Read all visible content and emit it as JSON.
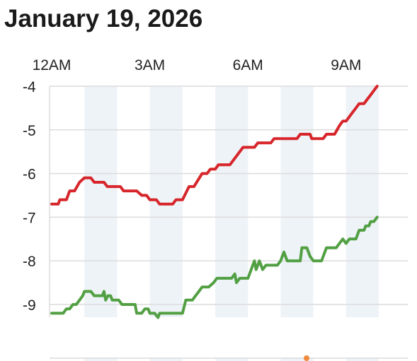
{
  "page": {
    "title": "January 19, 2026"
  },
  "chart_data": {
    "type": "line",
    "title": "",
    "xlabel": "",
    "ylabel": "",
    "x_unit": "hours after 12AM",
    "xlim": [
      0,
      11.0
    ],
    "ylim": [
      -9.25,
      -4
    ],
    "grid": true,
    "x_ticks": [
      {
        "x": 0,
        "label": "12AM"
      },
      {
        "x": 3,
        "label": "3AM"
      },
      {
        "x": 6,
        "label": "6AM"
      },
      {
        "x": 9,
        "label": "9AM"
      }
    ],
    "y_ticks": [
      -4,
      -5,
      -6,
      -7,
      -8,
      -9
    ],
    "series": [
      {
        "color": "#d7262b",
        "points": [
          [
            0.0,
            -6.7
          ],
          [
            0.2,
            -6.7
          ],
          [
            0.25,
            -6.6
          ],
          [
            0.45,
            -6.6
          ],
          [
            0.55,
            -6.4
          ],
          [
            0.7,
            -6.4
          ],
          [
            0.85,
            -6.2
          ],
          [
            1.0,
            -6.1
          ],
          [
            1.2,
            -6.1
          ],
          [
            1.3,
            -6.2
          ],
          [
            1.6,
            -6.2
          ],
          [
            1.7,
            -6.3
          ],
          [
            2.1,
            -6.3
          ],
          [
            2.2,
            -6.4
          ],
          [
            2.6,
            -6.4
          ],
          [
            2.75,
            -6.5
          ],
          [
            2.9,
            -6.5
          ],
          [
            3.0,
            -6.6
          ],
          [
            3.2,
            -6.6
          ],
          [
            3.3,
            -6.7
          ],
          [
            3.6,
            -6.7
          ],
          [
            3.7,
            -6.7
          ],
          [
            3.8,
            -6.6
          ],
          [
            4.0,
            -6.6
          ],
          [
            4.2,
            -6.3
          ],
          [
            4.35,
            -6.3
          ],
          [
            4.6,
            -6.0
          ],
          [
            4.75,
            -6.0
          ],
          [
            4.85,
            -5.9
          ],
          [
            5.0,
            -5.9
          ],
          [
            5.1,
            -5.8
          ],
          [
            5.45,
            -5.8
          ],
          [
            5.55,
            -5.7
          ],
          [
            5.65,
            -5.6
          ],
          [
            5.75,
            -5.5
          ],
          [
            5.85,
            -5.4
          ],
          [
            6.2,
            -5.4
          ],
          [
            6.3,
            -5.3
          ],
          [
            6.7,
            -5.3
          ],
          [
            6.8,
            -5.2
          ],
          [
            7.5,
            -5.2
          ],
          [
            7.6,
            -5.1
          ],
          [
            7.9,
            -5.1
          ],
          [
            7.95,
            -5.2
          ],
          [
            8.3,
            -5.2
          ],
          [
            8.4,
            -5.1
          ],
          [
            8.65,
            -5.1
          ],
          [
            8.8,
            -4.9
          ],
          [
            8.9,
            -4.8
          ],
          [
            9.0,
            -4.8
          ],
          [
            9.1,
            -4.7
          ],
          [
            9.2,
            -4.6
          ],
          [
            9.3,
            -4.5
          ],
          [
            9.4,
            -4.4
          ],
          [
            9.55,
            -4.4
          ],
          [
            9.65,
            -4.3
          ],
          [
            9.75,
            -4.2
          ],
          [
            9.85,
            -4.1
          ],
          [
            9.95,
            -4.0
          ]
        ]
      },
      {
        "color": "#52a043",
        "points": [
          [
            0.0,
            -9.2
          ],
          [
            0.35,
            -9.2
          ],
          [
            0.45,
            -9.1
          ],
          [
            0.55,
            -9.1
          ],
          [
            0.65,
            -9.0
          ],
          [
            0.75,
            -9.0
          ],
          [
            0.85,
            -8.9
          ],
          [
            0.95,
            -8.8
          ],
          [
            1.0,
            -8.7
          ],
          [
            1.2,
            -8.7
          ],
          [
            1.3,
            -8.8
          ],
          [
            1.55,
            -8.8
          ],
          [
            1.6,
            -8.7
          ],
          [
            1.65,
            -8.9
          ],
          [
            1.72,
            -8.8
          ],
          [
            1.8,
            -8.8
          ],
          [
            1.85,
            -8.9
          ],
          [
            2.05,
            -8.9
          ],
          [
            2.15,
            -9.0
          ],
          [
            2.55,
            -9.0
          ],
          [
            2.6,
            -9.2
          ],
          [
            2.75,
            -9.2
          ],
          [
            2.85,
            -9.1
          ],
          [
            2.95,
            -9.1
          ],
          [
            3.0,
            -9.2
          ],
          [
            3.15,
            -9.2
          ],
          [
            3.25,
            -9.3
          ],
          [
            3.3,
            -9.2
          ],
          [
            3.7,
            -9.2
          ],
          [
            4.0,
            -9.2
          ],
          [
            4.1,
            -8.9
          ],
          [
            4.3,
            -8.9
          ],
          [
            4.4,
            -8.8
          ],
          [
            4.5,
            -8.7
          ],
          [
            4.6,
            -8.6
          ],
          [
            4.8,
            -8.6
          ],
          [
            4.95,
            -8.5
          ],
          [
            5.05,
            -8.4
          ],
          [
            5.5,
            -8.4
          ],
          [
            5.6,
            -8.3
          ],
          [
            5.65,
            -8.5
          ],
          [
            5.75,
            -8.4
          ],
          [
            6.0,
            -8.4
          ],
          [
            6.1,
            -8.2
          ],
          [
            6.2,
            -8.0
          ],
          [
            6.25,
            -8.2
          ],
          [
            6.35,
            -8.0
          ],
          [
            6.45,
            -8.2
          ],
          [
            6.55,
            -8.1
          ],
          [
            6.9,
            -8.1
          ],
          [
            7.0,
            -8.0
          ],
          [
            7.1,
            -7.8
          ],
          [
            7.2,
            -8.0
          ],
          [
            7.6,
            -8.0
          ],
          [
            7.65,
            -7.7
          ],
          [
            7.8,
            -7.7
          ],
          [
            7.9,
            -7.9
          ],
          [
            8.0,
            -8.0
          ],
          [
            8.25,
            -8.0
          ],
          [
            8.4,
            -7.7
          ],
          [
            8.7,
            -7.7
          ],
          [
            8.9,
            -7.5
          ],
          [
            9.0,
            -7.6
          ],
          [
            9.1,
            -7.5
          ],
          [
            9.3,
            -7.5
          ],
          [
            9.4,
            -7.3
          ],
          [
            9.55,
            -7.3
          ],
          [
            9.6,
            -7.2
          ],
          [
            9.7,
            -7.2
          ],
          [
            9.75,
            -7.1
          ],
          [
            9.85,
            -7.1
          ],
          [
            9.95,
            -7.0
          ]
        ]
      }
    ]
  }
}
